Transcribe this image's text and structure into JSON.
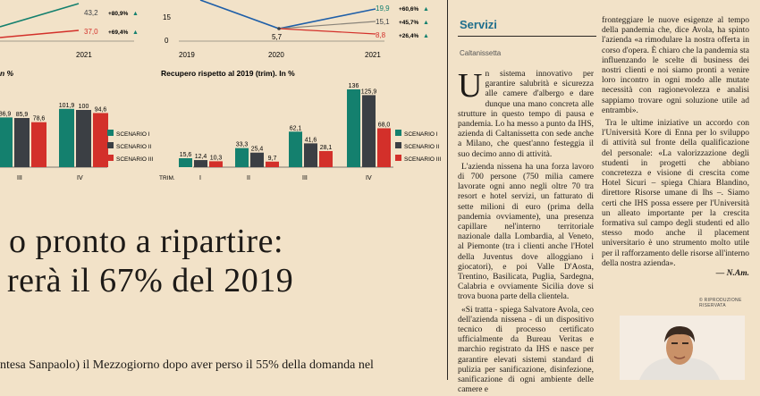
{
  "top_chart": {
    "tick_labels_left": [
      "2021"
    ],
    "vals_left": [
      "43,2",
      "37,0"
    ],
    "pcts_left": [
      "+80,9%",
      "+69,4%"
    ],
    "y_label_zero": "0",
    "y_label_15": "15",
    "x_labels": [
      "2019",
      "2020",
      "2021"
    ],
    "val_2020": "5,7",
    "vals_right": [
      "19,9",
      "15,1",
      "8,8"
    ],
    "pcts_right": [
      "+60,6%",
      "+45,7%",
      "+26,4%"
    ]
  },
  "chart_left": {
    "title_fragment": "n %",
    "value_labels": [
      "86,9",
      "85,9",
      "78,6",
      "101,9",
      "100",
      "94,6"
    ],
    "x_labels": [
      "III",
      "IV"
    ]
  },
  "chart_right": {
    "title": "Recupero rispetto al 2019 (trim). In %",
    "x_label_trim": "TRIM.",
    "x_labels": [
      "I",
      "II",
      "III",
      "IV"
    ],
    "value_labels": [
      "15,6",
      "12,4",
      "10,3",
      "33,3",
      "25,4",
      "9,7",
      "62,1",
      "41,6",
      "28,1",
      "136",
      "125,9",
      "68,0"
    ],
    "legend": [
      "SCENARIO I",
      "SCENARIO II",
      "SCENARIO III"
    ]
  },
  "chart_data": [
    {
      "type": "bar",
      "categories": [
        "III",
        "IV"
      ],
      "series": [
        {
          "name": "SCENARIO I",
          "values": [
            86.9,
            101.9
          ]
        },
        {
          "name": "SCENARIO II",
          "values": [
            85.9,
            100
          ]
        },
        {
          "name": "SCENARIO III",
          "values": [
            78.6,
            94.6
          ]
        }
      ]
    },
    {
      "type": "bar",
      "title": "Recupero rispetto al 2019 (trim). In %",
      "categories": [
        "I",
        "II",
        "III",
        "IV"
      ],
      "series": [
        {
          "name": "SCENARIO I",
          "values": [
            15.6,
            33.3,
            62.1,
            136
          ]
        },
        {
          "name": "SCENARIO II",
          "values": [
            12.4,
            25.4,
            41.6,
            125.9
          ]
        },
        {
          "name": "SCENARIO III",
          "values": [
            10.3,
            9.7,
            28.1,
            68.0
          ]
        }
      ]
    }
  ],
  "colors": {
    "teal": "#14806e",
    "dark": "#3b3f44",
    "red": "#d3302a",
    "blue_line": "#1f5fa8",
    "section_blue": "#1f6e8c"
  },
  "headline": {
    "line1": "o pronto a ripartire:",
    "line2": "rerà il 67% del 2019"
  },
  "body_bottom": "ntesa Sanpaolo) il Mezzogiorno dopo aver perso il 55% della domanda nel",
  "sidebar": {
    "section": "Servizi",
    "author": "Caltanissetta",
    "dropcap": "U",
    "col1_first": "n sistema innovativo per garantire salubrità e sicurezza alle camere d'albergo e dare dunque una mano concreta alle strutture in questo tempo di pausa e pandemia. Lo ha messo a punto da IHS, azienda di Caltanissetta con sede anche a Milano, che quest'anno festeggia il suo decimo anno di attività.",
    "col1_second": "L'azienda nissena ha una forza lavoro di 700 persone (750 milia camere lavorate ogni anno negli oltre 70 tra resort e hotel servizi, un fatturato di sette milioni di euro (prima della pandemia ovviamente), una presenza capillare nel'interno territoriale nazionale dalla Lombardia, al Veneto, al Piemonte (tra i clienti anche l'Hotel della Juventus dove alloggiano i giocatori), e poi Valle D'Aosta, Trentino, Basilicata, Puglia, Sardegna, Calabria e ovviamente Sicilia dove si trova buona parte della clientela.",
    "col1_third": "«Si tratta - spiega Salvatore Avola, ceo dell'azienda nissena - di un dispositivo tecnico di processo certificato ufficialmente da Bureau Veritas e marchio registrato da IHS e nasce per garantire elevati sistemi standard di pulizia per sanificazione, disinfezione, sanificazione di ogni ambiente delle camere e",
    "col2_first": "fronteggiare le nuove esigenze al tempo della pandemia che, dice Avola, ha spinto l'azienda «a rimodulare la nostra offerta in corso d'opera. È chiaro che la pandemia sta influenzando le scelte di business dei nostri clienti e noi siamo pronti a venire loro incontro in ogni modo alle mutate necessità con ragionevolezza e analisi sappiamo trovare ogni soluzione utile ad entrambi».",
    "col2_second": "Tra le ultime iniziative un accordo con l'Università Kore di Enna per lo sviluppo di attività sul fronte della qualificazione del personale: «La valorizzazione degli studenti in progetti che abbiano concretezza e visione di crescita come Hotel Sicuri – spiega Chiara Blandino, direttore Risorse umane di Ihs –. Siamo certi che IHS possa essere per l'Università un alleato importante per la crescita formativa sul campo degli studenti ed allo stesso modo anche il placement universitario è uno strumento molto utile per il rafforzamento delle risorse all'interno della nostra azienda».",
    "signature": "— N.Am.",
    "photo_credit": "© RIPRODUZIONE RISERVATA"
  }
}
